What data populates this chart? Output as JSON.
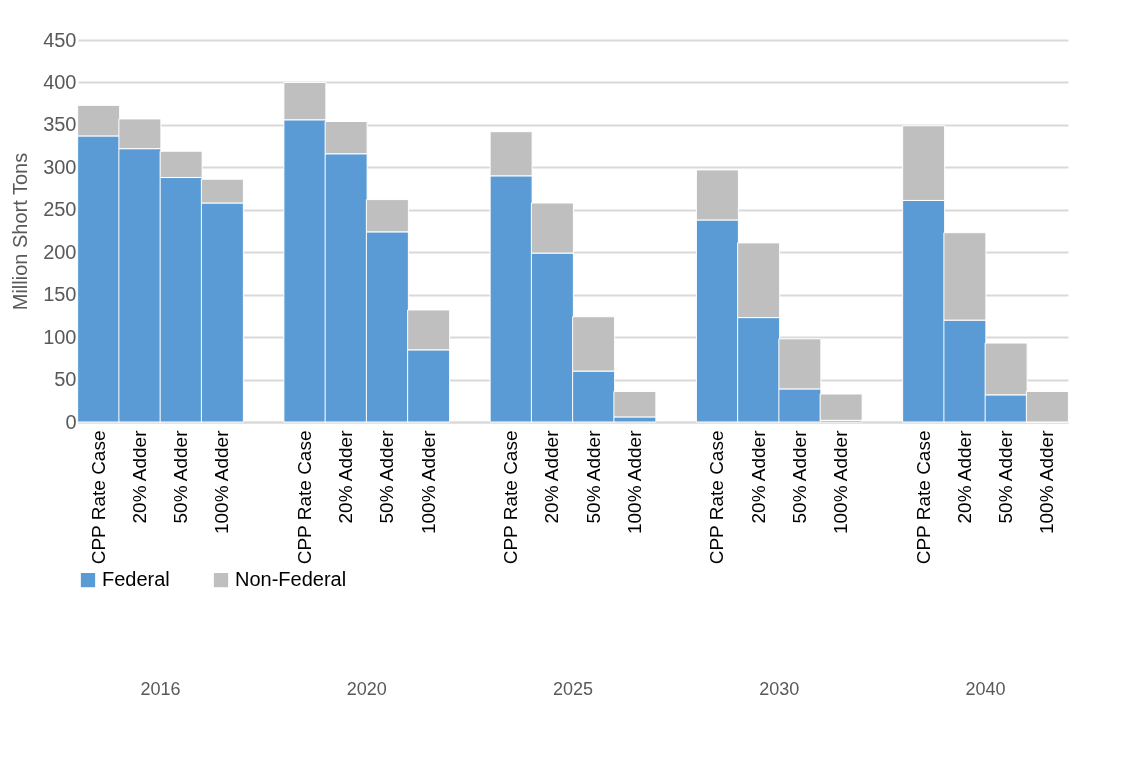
{
  "chart_data": {
    "type": "bar",
    "stacked": true,
    "ylabel": "Million Short Tons",
    "categories": [
      "CPP Rate Case",
      "20% Adder",
      "50% Adder",
      "100% Adder",
      null,
      "CPP Rate Case",
      "20% Adder",
      "50% Adder",
      "100% Adder",
      null,
      "CPP Rate Case",
      "20% Adder",
      "50% Adder",
      "100% Adder",
      null,
      "CPP Rate Case",
      "20% Adder",
      "50% Adder",
      "100% Adder",
      null,
      "CPP Rate Case",
      "20% Adder",
      "50% Adder",
      "100% Adder"
    ],
    "series": [
      {
        "name": "Federal",
        "color": "#5b9bd5",
        "values": [
          337,
          322,
          288,
          258,
          null,
          356,
          316,
          224,
          85,
          null,
          290,
          199,
          60,
          6,
          null,
          238,
          123,
          39,
          2,
          null,
          261,
          120,
          32,
          0
        ]
      },
      {
        "name": "Non-Federal",
        "color": "#bfbfbf",
        "values": [
          36,
          35,
          31,
          28,
          null,
          44,
          38,
          38,
          47,
          null,
          52,
          59,
          64,
          30,
          null,
          59,
          88,
          59,
          31,
          null,
          88,
          103,
          61,
          36
        ]
      }
    ],
    "annotations": [
      "2016",
      "2020",
      "2025",
      "2030",
      "2040"
    ],
    "ylim": [
      0,
      450
    ],
    "yticks": [
      0,
      50,
      100,
      150,
      200,
      250,
      300,
      350,
      400,
      450
    ],
    "grid": "y",
    "legend": "bottom"
  }
}
